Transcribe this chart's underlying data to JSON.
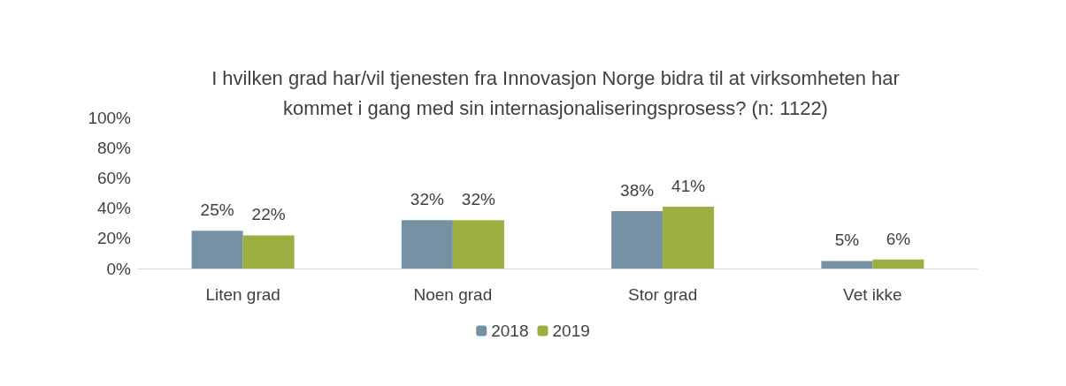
{
  "chart_data": {
    "type": "bar",
    "title": "I hvilken grad har/vil tjenesten fra Innovasjon Norge bidra til at virksomheten har\nkommet i gang med sin internasjonaliseringsprosess? (n: 1122)",
    "categories": [
      "Liten grad",
      "Noen grad",
      "Stor grad",
      "Vet ikke"
    ],
    "series": [
      {
        "name": "2018",
        "color": "#7591a3",
        "values": [
          25,
          32,
          38,
          5
        ],
        "value_labels": [
          "25%",
          "32%",
          "38%",
          "5%"
        ]
      },
      {
        "name": "2019",
        "color": "#9bb041",
        "values": [
          22,
          32,
          41,
          6
        ],
        "value_labels": [
          "22%",
          "32%",
          "41%",
          "6%"
        ]
      }
    ],
    "ylim": [
      0,
      100
    ],
    "yticks": [
      {
        "value": 0,
        "label": "0%"
      },
      {
        "value": 20,
        "label": "20%"
      },
      {
        "value": 40,
        "label": "40%"
      },
      {
        "value": 60,
        "label": "60%"
      },
      {
        "value": 80,
        "label": "80%"
      },
      {
        "value": 100,
        "label": "100%"
      }
    ],
    "grid": false,
    "legend": "bottom"
  }
}
